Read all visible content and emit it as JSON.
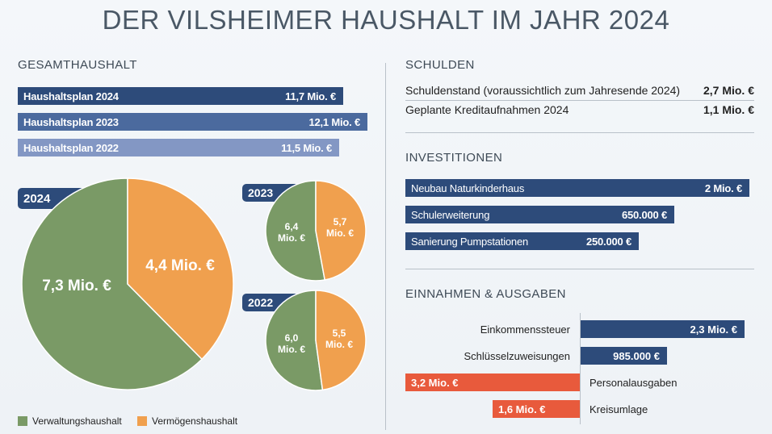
{
  "title": "DER VILSHEIMER HAUSHALT IM JAHR 2024",
  "colors": {
    "navy": "#2d4b7a",
    "mid_blue": "#4b6a9e",
    "light_blue": "#8397c4",
    "green": "#7a9a66",
    "orange": "#f0a04e",
    "red": "#e85a3c"
  },
  "gesamthaushalt": {
    "heading": "GESAMTHAUSHALT",
    "rows": [
      {
        "label": "Haushaltsplan 2024",
        "value_label": "11,7 Mio. €",
        "value": 11.7
      },
      {
        "label": "Haushaltsplan 2023",
        "value_label": "12,1 Mio. €",
        "value": 12.1
      },
      {
        "label": "Haushaltsplan 2022",
        "value_label": "11,5 Mio. €",
        "value": 11.5
      }
    ]
  },
  "pies": [
    {
      "year": "2024",
      "verwaltung_label": "7,3 Mio. €",
      "verwaltung": 7.3,
      "vermoegen_label": "4,4 Mio. €",
      "vermoegen": 4.4
    },
    {
      "year": "2023",
      "verwaltung_label_1": "6,4",
      "verwaltung_label_2": "Mio. €",
      "verwaltung": 6.4,
      "vermoegen_label_1": "5,7",
      "vermoegen_label_2": "Mio. €",
      "vermoegen": 5.7
    },
    {
      "year": "2022",
      "verwaltung_label_1": "6,0",
      "verwaltung_label_2": "Mio. €",
      "verwaltung": 6.0,
      "vermoegen_label_1": "5,5",
      "vermoegen_label_2": "Mio. €",
      "vermoegen": 5.5
    }
  ],
  "legend": {
    "verwaltung": "Verwaltungshaushalt",
    "vermoegen": "Vermögenshaushalt"
  },
  "schulden": {
    "heading": "SCHULDEN",
    "rows": [
      {
        "label": "Schuldenstand (voraussichtlich zum Jahresende 2024)",
        "value_label": "2,7 Mio. €"
      },
      {
        "label": "Geplante Kreditaufnahmen 2024",
        "value_label": "1,1 Mio. €"
      }
    ]
  },
  "investitionen": {
    "heading": "INVESTITIONEN",
    "rows": [
      {
        "label": "Neubau Naturkinderhaus",
        "value_label": "2 Mio. €",
        "value": 2000000
      },
      {
        "label": "Schulerweiterung",
        "value_label": "650.000 €",
        "value": 650000
      },
      {
        "label": "Sanierung Pumpstationen",
        "value_label": "250.000 €",
        "value": 250000
      }
    ]
  },
  "einnahmen_ausgaben": {
    "heading": "EINNAHMEN & AUSGABEN",
    "einnahmen": [
      {
        "label": "Einkommenssteuer",
        "value_label": "2,3 Mio. €",
        "value": 2300000
      },
      {
        "label": "Schlüsselzuweisungen",
        "value_label": "985.000 €",
        "value": 985000
      }
    ],
    "ausgaben": [
      {
        "label": "Personalausgaben",
        "value_label": "3,2 Mio. €",
        "value": 3200000
      },
      {
        "label": "Kreisumlage",
        "value_label": "1,6 Mio. €",
        "value": 1600000
      }
    ]
  },
  "chart_data": [
    {
      "type": "bar",
      "title": "GESAMTHAUSHALT",
      "categories": [
        "Haushaltsplan 2024",
        "Haushaltsplan 2023",
        "Haushaltsplan 2022"
      ],
      "values": [
        11.7,
        12.1,
        11.5
      ]
    },
    {
      "type": "pie",
      "title": "2024",
      "categories": [
        "Verwaltungshaushalt",
        "Vermögenshaushalt"
      ],
      "values": [
        7.3,
        4.4
      ]
    },
    {
      "type": "pie",
      "title": "2023",
      "categories": [
        "Verwaltungshaushalt",
        "Vermögenshaushalt"
      ],
      "values": [
        6.4,
        5.7
      ]
    },
    {
      "type": "pie",
      "title": "2022",
      "categories": [
        "Verwaltungshaushalt",
        "Vermögenshaushalt"
      ],
      "values": [
        6.0,
        5.5
      ]
    },
    {
      "type": "bar",
      "title": "INVESTITIONEN",
      "categories": [
        "Neubau Naturkinderhaus",
        "Schulerweiterung",
        "Sanierung Pumpstationen"
      ],
      "values": [
        2000000,
        650000,
        250000
      ]
    },
    {
      "type": "bar",
      "title": "EINNAHMEN & AUSGABEN",
      "categories": [
        "Einkommenssteuer",
        "Schlüsselzuweisungen",
        "Personalausgaben",
        "Kreisumlage"
      ],
      "values": [
        2300000,
        985000,
        -3200000,
        -1600000
      ]
    }
  ]
}
